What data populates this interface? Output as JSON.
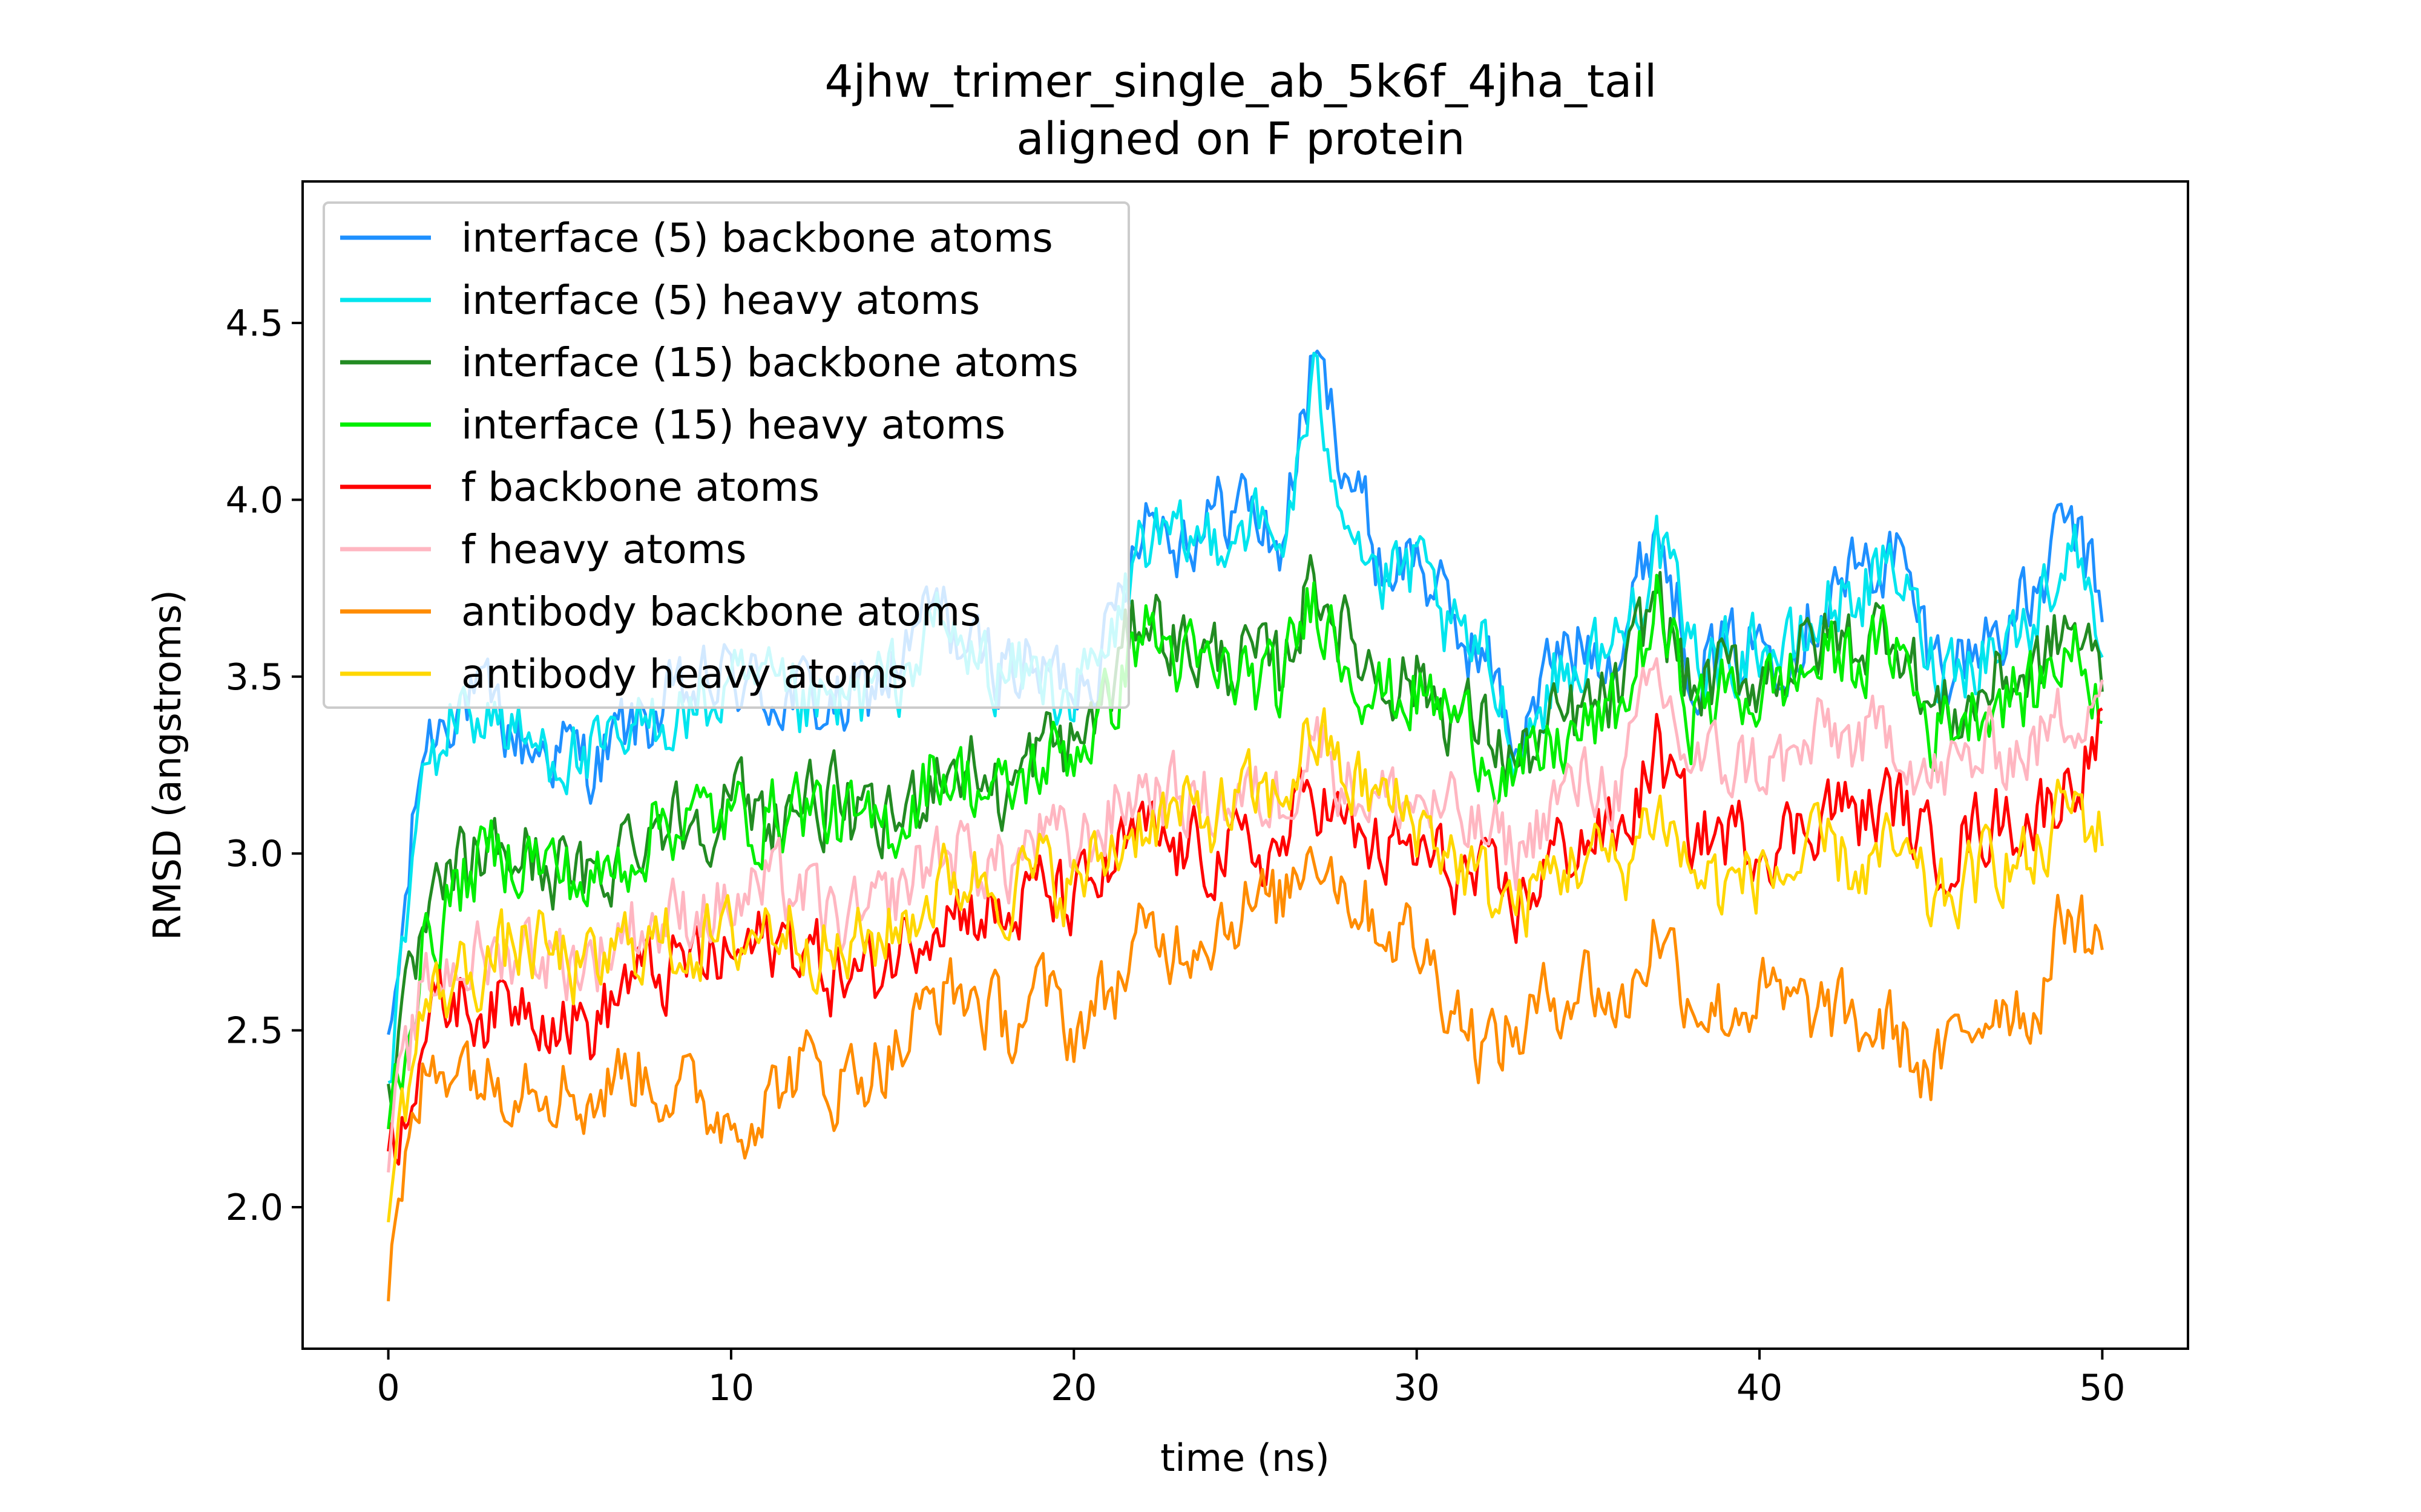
{
  "chart_data": {
    "type": "line",
    "title": "4jhw_trimer_single_ab_5k6f_4jha_tail",
    "subtitle": "aligned on F protein",
    "xlabel": "time (ns)",
    "ylabel": "RMSD (angstroms)",
    "xlim": [
      -2.5,
      52.5
    ],
    "ylim": [
      1.6,
      4.9
    ],
    "xticks": [
      "0",
      "10",
      "20",
      "30",
      "40",
      "50"
    ],
    "yticks": [
      "2.0",
      "2.5",
      "3.0",
      "3.5",
      "4.0",
      "4.5"
    ],
    "grid": false,
    "legend_position": "upper-left",
    "x": [
      0,
      1,
      2,
      3,
      4,
      5,
      6,
      7,
      8,
      9,
      10,
      11,
      12,
      13,
      14,
      15,
      16,
      17,
      18,
      19,
      20,
      21,
      22,
      23,
      24,
      25,
      26,
      27,
      28,
      29,
      30,
      31,
      32,
      33,
      34,
      35,
      36,
      37,
      38,
      39,
      40,
      41,
      42,
      43,
      44,
      45,
      46,
      47,
      48,
      49,
      50
    ],
    "series": [
      {
        "name": "interface (5) backbone atoms",
        "color": "#1E90FF",
        "values": [
          2.4,
          3.3,
          3.45,
          3.4,
          3.3,
          3.3,
          3.25,
          3.35,
          3.4,
          3.45,
          3.5,
          3.45,
          3.45,
          3.4,
          3.45,
          3.55,
          3.7,
          3.55,
          3.55,
          3.5,
          3.5,
          3.6,
          4.0,
          3.9,
          3.95,
          4.0,
          3.85,
          4.4,
          4.1,
          3.8,
          3.85,
          3.65,
          3.55,
          3.3,
          3.55,
          3.6,
          3.6,
          3.95,
          3.55,
          3.55,
          3.6,
          3.6,
          3.75,
          3.8,
          3.85,
          3.55,
          3.55,
          3.65,
          3.7,
          3.95,
          3.7
        ]
      },
      {
        "name": "interface (5) heavy atoms",
        "color": "#00E5EE",
        "values": [
          2.35,
          3.2,
          3.4,
          3.4,
          3.3,
          3.3,
          3.25,
          3.3,
          3.4,
          3.4,
          3.45,
          3.45,
          3.4,
          3.4,
          3.45,
          3.5,
          3.65,
          3.55,
          3.5,
          3.5,
          3.45,
          3.55,
          3.9,
          3.85,
          3.9,
          3.95,
          3.85,
          4.3,
          4.0,
          3.75,
          3.8,
          3.6,
          3.55,
          3.3,
          3.5,
          3.55,
          3.6,
          3.9,
          3.55,
          3.55,
          3.6,
          3.55,
          3.7,
          3.75,
          3.8,
          3.55,
          3.55,
          3.6,
          3.65,
          3.9,
          3.65
        ]
      },
      {
        "name": "interface (15) backbone atoms",
        "color": "#228B22",
        "values": [
          2.3,
          2.75,
          2.95,
          3.0,
          3.0,
          2.95,
          2.9,
          3.05,
          3.1,
          3.1,
          3.15,
          3.1,
          3.15,
          3.15,
          3.05,
          3.1,
          3.25,
          3.25,
          3.15,
          3.3,
          3.3,
          3.45,
          3.7,
          3.6,
          3.55,
          3.55,
          3.5,
          3.8,
          3.6,
          3.5,
          3.5,
          3.4,
          3.35,
          3.25,
          3.35,
          3.4,
          3.45,
          3.75,
          3.45,
          3.5,
          3.5,
          3.55,
          3.6,
          3.6,
          3.65,
          3.4,
          3.4,
          3.5,
          3.5,
          3.65,
          3.5
        ]
      },
      {
        "name": "interface (15) heavy atoms",
        "color": "#00EE00",
        "values": [
          2.25,
          2.7,
          2.9,
          3.0,
          3.0,
          2.95,
          2.9,
          3.0,
          3.1,
          3.1,
          3.1,
          3.1,
          3.15,
          3.1,
          3.05,
          3.1,
          3.25,
          3.2,
          3.15,
          3.25,
          3.3,
          3.4,
          3.65,
          3.55,
          3.5,
          3.5,
          3.45,
          3.75,
          3.55,
          3.45,
          3.45,
          3.4,
          3.3,
          3.2,
          3.3,
          3.35,
          3.4,
          3.7,
          3.4,
          3.45,
          3.45,
          3.5,
          3.55,
          3.55,
          3.6,
          3.35,
          3.4,
          3.45,
          3.45,
          3.6,
          3.45
        ]
      },
      {
        "name": "f backbone atoms",
        "color": "#FF0000",
        "values": [
          2.1,
          2.5,
          2.6,
          2.55,
          2.6,
          2.55,
          2.5,
          2.65,
          2.65,
          2.7,
          2.7,
          2.75,
          2.75,
          2.65,
          2.65,
          2.75,
          2.85,
          2.85,
          2.8,
          2.9,
          2.85,
          2.95,
          3.05,
          3.0,
          3.0,
          3.0,
          3.0,
          3.2,
          3.05,
          3.0,
          3.0,
          2.95,
          2.9,
          2.85,
          3.0,
          3.05,
          3.05,
          3.3,
          3.05,
          3.05,
          3.05,
          3.05,
          3.15,
          3.1,
          3.15,
          3.0,
          3.05,
          3.1,
          3.1,
          3.2,
          3.35
        ]
      },
      {
        "name": "f heavy atoms",
        "color": "#FFB6C1",
        "values": [
          2.15,
          2.6,
          2.7,
          2.7,
          2.75,
          2.7,
          2.7,
          2.8,
          2.8,
          2.85,
          2.85,
          2.9,
          2.9,
          2.8,
          2.8,
          2.9,
          3.0,
          3.0,
          2.95,
          3.05,
          3.0,
          3.1,
          3.2,
          3.15,
          3.15,
          3.15,
          3.15,
          3.35,
          3.2,
          3.15,
          3.15,
          3.1,
          3.05,
          3.0,
          3.15,
          3.2,
          3.2,
          3.5,
          3.25,
          3.25,
          3.25,
          3.25,
          3.35,
          3.3,
          3.35,
          3.2,
          3.25,
          3.3,
          3.3,
          3.4,
          3.5
        ]
      },
      {
        "name": "antibody backbone atoms",
        "color": "#FF8C00",
        "values": [
          1.8,
          2.35,
          2.45,
          2.35,
          2.4,
          2.35,
          2.3,
          2.4,
          2.35,
          2.3,
          2.25,
          2.3,
          2.4,
          2.35,
          2.4,
          2.45,
          2.6,
          2.6,
          2.5,
          2.6,
          2.5,
          2.6,
          2.75,
          2.75,
          2.8,
          2.85,
          2.85,
          3.05,
          2.9,
          2.8,
          2.75,
          2.6,
          2.45,
          2.5,
          2.6,
          2.65,
          2.55,
          2.8,
          2.6,
          2.55,
          2.6,
          2.55,
          2.55,
          2.5,
          2.5,
          2.35,
          2.5,
          2.6,
          2.55,
          2.85,
          2.7
        ]
      },
      {
        "name": "antibody heavy atoms",
        "color": "#FFD700",
        "values": [
          2.05,
          2.55,
          2.65,
          2.7,
          2.75,
          2.7,
          2.65,
          2.75,
          2.75,
          2.75,
          2.75,
          2.8,
          2.8,
          2.7,
          2.75,
          2.8,
          2.9,
          2.95,
          2.9,
          2.95,
          2.9,
          3.0,
          3.1,
          3.1,
          3.1,
          3.15,
          3.15,
          3.35,
          3.2,
          3.15,
          3.1,
          3.0,
          2.9,
          2.85,
          2.95,
          3.0,
          2.95,
          3.15,
          2.95,
          2.9,
          2.95,
          2.95,
          3.0,
          2.95,
          3.0,
          2.85,
          2.9,
          3.0,
          2.95,
          3.15,
          3.05
        ]
      }
    ]
  }
}
